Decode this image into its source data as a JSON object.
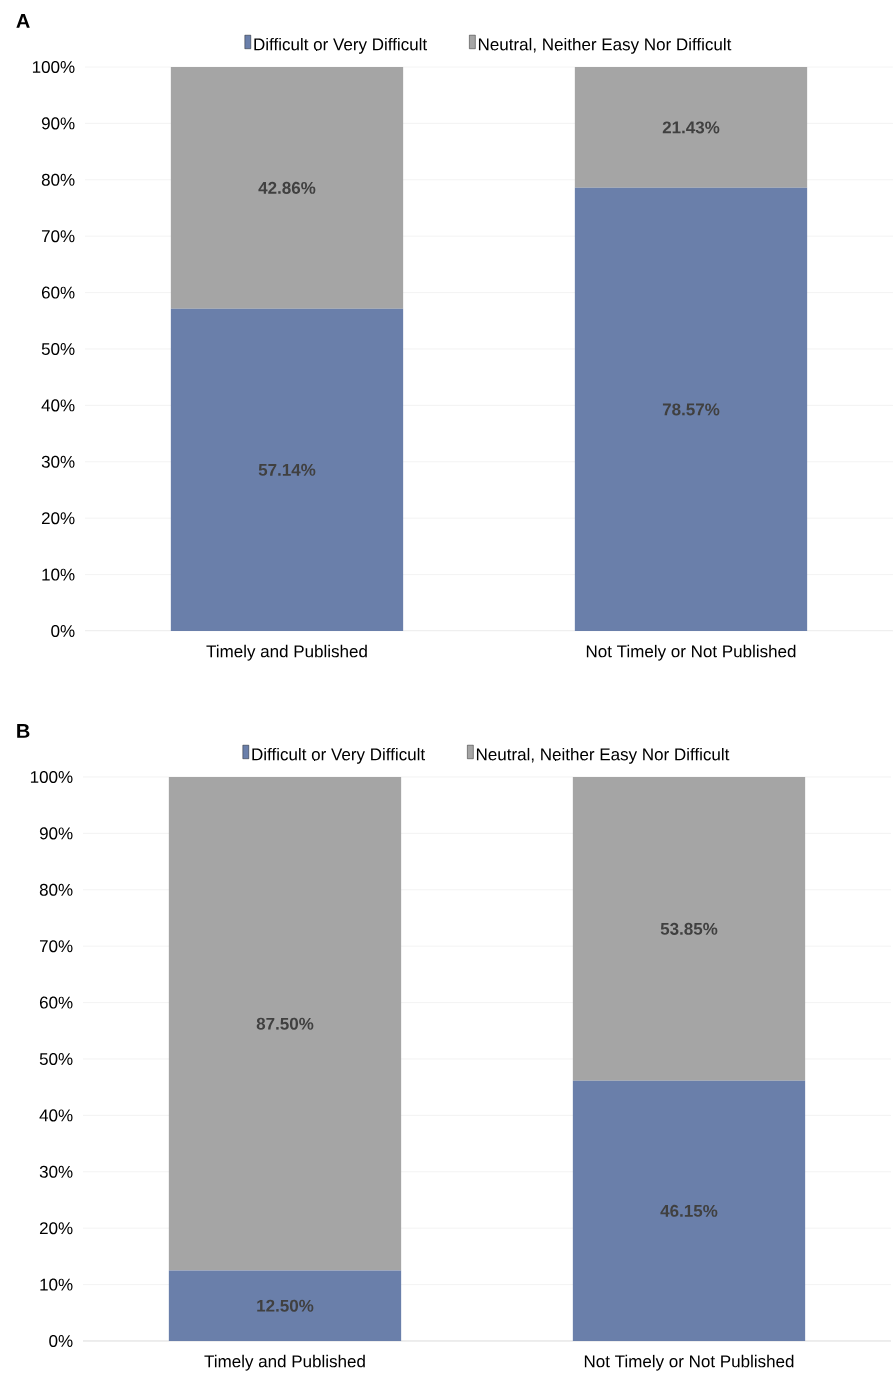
{
  "chart_data": [
    {
      "type": "bar",
      "title": "A",
      "stacked": true,
      "legend": "top",
      "grid": "y",
      "categories": [
        "Timely and Published",
        "Not Timely or Not Published"
      ],
      "ylim": [
        0,
        100
      ],
      "yticks": [
        {
          "value": 0,
          "label": "0%"
        },
        {
          "value": 10,
          "label": "10%"
        },
        {
          "value": 20,
          "label": "20%"
        },
        {
          "value": 30,
          "label": "30%"
        },
        {
          "value": 40,
          "label": "40%"
        },
        {
          "value": 50,
          "label": "50%"
        },
        {
          "value": 60,
          "label": "60%"
        },
        {
          "value": 70,
          "label": "70%"
        },
        {
          "value": 80,
          "label": "80%"
        },
        {
          "value": 90,
          "label": "90%"
        },
        {
          "value": 100,
          "label": "100%"
        }
      ],
      "series": [
        {
          "name": "Difficult or Very Difficult",
          "color": "#6a7faa",
          "values": [
            57.14,
            78.57
          ],
          "value_labels": [
            "57.14%",
            "78.57%"
          ]
        },
        {
          "name": "Neutral, Neither Easy Nor Difficult",
          "color": "#a5a5a5",
          "values": [
            42.86,
            21.43
          ],
          "value_labels": [
            "42.86%",
            "21.43%"
          ]
        }
      ]
    },
    {
      "type": "bar",
      "title": "B",
      "stacked": true,
      "legend": "top",
      "grid": "y",
      "categories": [
        "Timely and Published",
        "Not Timely or Not Published"
      ],
      "ylim": [
        0,
        100
      ],
      "yticks": [
        {
          "value": 0,
          "label": "0%"
        },
        {
          "value": 10,
          "label": "10%"
        },
        {
          "value": 20,
          "label": "20%"
        },
        {
          "value": 30,
          "label": "30%"
        },
        {
          "value": 40,
          "label": "40%"
        },
        {
          "value": 50,
          "label": "50%"
        },
        {
          "value": 60,
          "label": "60%"
        },
        {
          "value": 70,
          "label": "70%"
        },
        {
          "value": 80,
          "label": "80%"
        },
        {
          "value": 90,
          "label": "90%"
        },
        {
          "value": 100,
          "label": "100%"
        }
      ],
      "series": [
        {
          "name": "Difficult or Very Difficult",
          "color": "#6a7faa",
          "values": [
            12.5,
            46.15
          ],
          "value_labels": [
            "12.50%",
            "46.15%"
          ]
        },
        {
          "name": "Neutral, Neither Easy Nor Difficult",
          "color": "#a5a5a5",
          "values": [
            87.5,
            53.85
          ],
          "value_labels": [
            "87.50%",
            "53.85%"
          ]
        }
      ]
    }
  ]
}
